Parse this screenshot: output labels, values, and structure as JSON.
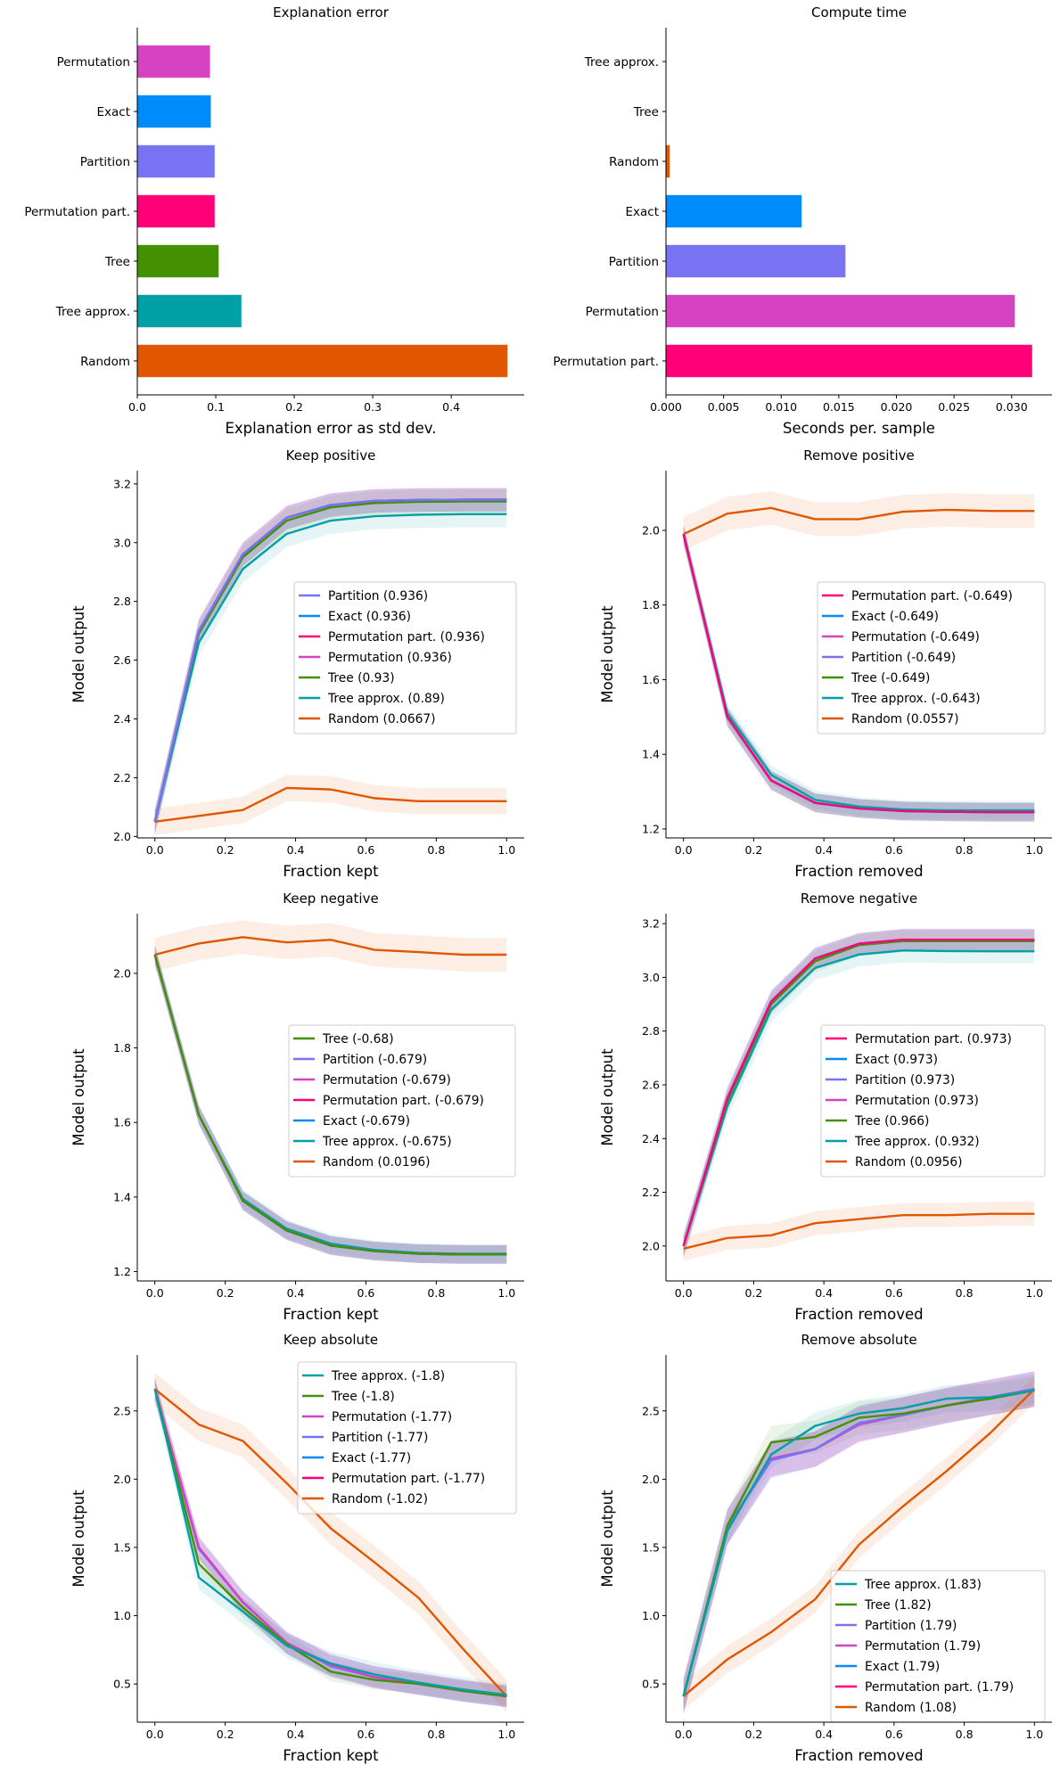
{
  "colors": {
    "Permutation": "#d543c3",
    "Exact": "#008bfb",
    "Partition": "#7873f3",
    "Permutation part.": "#ff0078",
    "Tree": "#449100",
    "Tree approx.": "#00a0a6",
    "Random": "#e05700"
  },
  "chart_data": [
    {
      "type": "bar",
      "orientation": "horizontal",
      "title": "Explanation error",
      "xlabel": "Explanation error as std dev.",
      "ylabel": "",
      "categories": [
        "Permutation",
        "Exact",
        "Partition",
        "Permutation part.",
        "Tree",
        "Tree approx.",
        "Random"
      ],
      "values": [
        0.093,
        0.094,
        0.099,
        0.099,
        0.104,
        0.133,
        0.472
      ],
      "xlim": [
        0,
        0.493
      ],
      "xticks": [
        0,
        0.1,
        0.2,
        0.3,
        0.4
      ],
      "xtick_labels": [
        "0.0",
        "0.1",
        "0.2",
        "0.3",
        "0.4"
      ]
    },
    {
      "type": "bar",
      "orientation": "horizontal",
      "title": "Compute time",
      "xlabel": "Seconds per. sample",
      "ylabel": "",
      "categories": [
        "Tree approx.",
        "Tree",
        "Random",
        "Exact",
        "Partition",
        "Permutation",
        "Permutation part."
      ],
      "values": [
        0,
        0,
        0.00035,
        0.0118,
        0.0156,
        0.0303,
        0.0318
      ],
      "xlim": [
        0,
        0.0335
      ],
      "xticks": [
        0,
        0.005,
        0.01,
        0.015,
        0.02,
        0.025,
        0.03
      ],
      "xtick_labels": [
        "0.000",
        "0.005",
        "0.010",
        "0.015",
        "0.020",
        "0.025",
        "0.030"
      ]
    },
    {
      "type": "line",
      "title": "Keep positive",
      "xlabel": "Fraction kept",
      "ylabel": "Model output",
      "x": [
        0,
        0.125,
        0.25,
        0.375,
        0.5,
        0.625,
        0.75,
        0.875,
        1
      ],
      "ylim": [
        1.995,
        3.245
      ],
      "yticks": [
        "2.0",
        "2.2",
        "2.4",
        "2.6",
        "2.8",
        "3.0",
        "3.2"
      ],
      "xticks": [
        "0.0",
        "0.2",
        "0.4",
        "0.6",
        "0.8",
        "1.0"
      ],
      "legend": "center-right",
      "series": [
        {
          "name": "Partition",
          "label": "Partition (0.936)",
          "values": [
            2.05,
            2.7,
            2.96,
            3.085,
            3.128,
            3.142,
            3.145,
            3.146,
            3.146
          ],
          "spread": 0.04
        },
        {
          "name": "Exact",
          "label": "Exact (0.936)",
          "values": [
            2.05,
            2.7,
            2.96,
            3.085,
            3.128,
            3.142,
            3.145,
            3.146,
            3.146
          ],
          "spread": 0.04
        },
        {
          "name": "Permutation part.",
          "label": "Permutation part. (0.936)",
          "values": [
            2.05,
            2.7,
            2.96,
            3.085,
            3.128,
            3.142,
            3.145,
            3.146,
            3.146
          ],
          "spread": 0.04
        },
        {
          "name": "Permutation",
          "label": "Permutation (0.936)",
          "values": [
            2.05,
            2.7,
            2.96,
            3.085,
            3.128,
            3.142,
            3.145,
            3.146,
            3.146
          ],
          "spread": 0.04
        },
        {
          "name": "Tree",
          "label": "Tree (0.93)",
          "values": [
            2.05,
            2.69,
            2.95,
            3.075,
            3.12,
            3.135,
            3.139,
            3.14,
            3.14
          ],
          "spread": 0.04
        },
        {
          "name": "Tree approx.",
          "label": "Tree approx. (0.89)",
          "values": [
            2.05,
            2.66,
            2.91,
            3.03,
            3.075,
            3.09,
            3.095,
            3.097,
            3.097
          ],
          "spread": 0.045
        },
        {
          "name": "Random",
          "label": "Random (0.0667)",
          "values": [
            2.05,
            2.07,
            2.09,
            2.165,
            2.16,
            2.13,
            2.12,
            2.12,
            2.12
          ],
          "spread": 0.045
        }
      ]
    },
    {
      "type": "line",
      "title": "Remove positive",
      "xlabel": "Fraction removed",
      "ylabel": "Model output",
      "x": [
        0,
        0.125,
        0.25,
        0.375,
        0.5,
        0.625,
        0.75,
        0.875,
        1
      ],
      "ylim": [
        1.176,
        2.16
      ],
      "yticks": [
        "1.2",
        "1.4",
        "1.6",
        "1.8",
        "2.0"
      ],
      "xticks": [
        "0.0",
        "0.2",
        "0.4",
        "0.6",
        "0.8",
        "1.0"
      ],
      "legend": "center-right",
      "series": [
        {
          "name": "Permutation part.",
          "label": "Permutation part. (-0.649)",
          "values": [
            1.99,
            1.5,
            1.33,
            1.27,
            1.255,
            1.248,
            1.246,
            1.245,
            1.245
          ],
          "spread": 0.025
        },
        {
          "name": "Exact",
          "label": "Exact (-0.649)",
          "values": [
            1.99,
            1.5,
            1.33,
            1.27,
            1.255,
            1.248,
            1.246,
            1.245,
            1.245
          ],
          "spread": 0.025
        },
        {
          "name": "Permutation",
          "label": "Permutation (-0.649)",
          "values": [
            1.99,
            1.5,
            1.33,
            1.27,
            1.255,
            1.248,
            1.246,
            1.245,
            1.245
          ],
          "spread": 0.025
        },
        {
          "name": "Partition",
          "label": "Partition (-0.649)",
          "values": [
            1.99,
            1.5,
            1.33,
            1.27,
            1.255,
            1.248,
            1.246,
            1.245,
            1.245
          ],
          "spread": 0.025
        },
        {
          "name": "Tree",
          "label": "Tree (-0.649)",
          "values": [
            1.99,
            1.5,
            1.33,
            1.27,
            1.255,
            1.248,
            1.246,
            1.245,
            1.245
          ],
          "spread": 0.025
        },
        {
          "name": "Tree approx.",
          "label": "Tree approx. (-0.643)",
          "values": [
            1.99,
            1.51,
            1.345,
            1.278,
            1.26,
            1.252,
            1.25,
            1.25,
            1.25
          ],
          "spread": 0.025
        },
        {
          "name": "Random",
          "label": "Random (0.0557)",
          "values": [
            1.99,
            2.045,
            2.06,
            2.03,
            2.03,
            2.05,
            2.055,
            2.052,
            2.052
          ],
          "spread": 0.045
        }
      ]
    },
    {
      "type": "line",
      "title": "Keep negative",
      "xlabel": "Fraction kept",
      "ylabel": "Model output",
      "x": [
        0,
        0.125,
        0.25,
        0.375,
        0.5,
        0.625,
        0.75,
        0.875,
        1
      ],
      "ylim": [
        1.175,
        2.16
      ],
      "yticks": [
        "1.2",
        "1.4",
        "1.6",
        "1.8",
        "2.0"
      ],
      "xticks": [
        "0.0",
        "0.2",
        "0.4",
        "0.6",
        "0.8",
        "1.0"
      ],
      "legend": "center-right",
      "series": [
        {
          "name": "Tree",
          "label": "Tree (-0.68)",
          "values": [
            2.05,
            1.62,
            1.39,
            1.31,
            1.27,
            1.255,
            1.248,
            1.246,
            1.246
          ],
          "spread": 0.025
        },
        {
          "name": "Partition",
          "label": "Partition (-0.679)",
          "values": [
            2.05,
            1.62,
            1.39,
            1.31,
            1.27,
            1.255,
            1.248,
            1.246,
            1.246
          ],
          "spread": 0.025
        },
        {
          "name": "Permutation",
          "label": "Permutation (-0.679)",
          "values": [
            2.05,
            1.62,
            1.39,
            1.31,
            1.27,
            1.255,
            1.248,
            1.246,
            1.246
          ],
          "spread": 0.025
        },
        {
          "name": "Permutation part.",
          "label": "Permutation part. (-0.679)",
          "values": [
            2.05,
            1.62,
            1.39,
            1.31,
            1.27,
            1.255,
            1.248,
            1.246,
            1.246
          ],
          "spread": 0.025
        },
        {
          "name": "Exact",
          "label": "Exact (-0.679)",
          "values": [
            2.05,
            1.62,
            1.39,
            1.31,
            1.27,
            1.255,
            1.248,
            1.246,
            1.246
          ],
          "spread": 0.025
        },
        {
          "name": "Tree approx.",
          "label": "Tree approx. (-0.675)",
          "values": [
            2.05,
            1.62,
            1.395,
            1.315,
            1.275,
            1.258,
            1.25,
            1.248,
            1.248
          ],
          "spread": 0.025
        },
        {
          "name": "Random",
          "label": "Random (0.0196)",
          "values": [
            2.05,
            2.08,
            2.097,
            2.083,
            2.09,
            2.063,
            2.057,
            2.05,
            2.05
          ],
          "spread": 0.045
        }
      ]
    },
    {
      "type": "line",
      "title": "Remove negative",
      "xlabel": "Fraction removed",
      "ylabel": "Model output",
      "x": [
        0,
        0.125,
        0.25,
        0.375,
        0.5,
        0.625,
        0.75,
        0.875,
        1
      ],
      "ylim": [
        1.87,
        3.237
      ],
      "yticks": [
        "2.0",
        "2.2",
        "2.4",
        "2.6",
        "2.8",
        "3.0",
        "3.2"
      ],
      "xticks": [
        "0.0",
        "0.2",
        "0.4",
        "0.6",
        "0.8",
        "1.0"
      ],
      "legend": "center-right",
      "series": [
        {
          "name": "Permutation part.",
          "label": "Permutation part. (0.973)",
          "values": [
            2.0,
            2.55,
            2.91,
            3.07,
            3.125,
            3.14,
            3.14,
            3.14,
            3.14
          ],
          "spread": 0.04
        },
        {
          "name": "Exact",
          "label": "Exact (0.973)",
          "values": [
            2.0,
            2.55,
            2.91,
            3.07,
            3.125,
            3.14,
            3.14,
            3.14,
            3.14
          ],
          "spread": 0.04
        },
        {
          "name": "Partition",
          "label": "Partition (0.973)",
          "values": [
            2.0,
            2.55,
            2.91,
            3.07,
            3.125,
            3.14,
            3.14,
            3.14,
            3.14
          ],
          "spread": 0.04
        },
        {
          "name": "Permutation",
          "label": "Permutation (0.973)",
          "values": [
            2.0,
            2.55,
            2.91,
            3.07,
            3.125,
            3.14,
            3.14,
            3.14,
            3.14
          ],
          "spread": 0.04
        },
        {
          "name": "Tree",
          "label": "Tree (0.966)",
          "values": [
            2.0,
            2.54,
            2.9,
            3.06,
            3.12,
            3.135,
            3.135,
            3.135,
            3.135
          ],
          "spread": 0.04
        },
        {
          "name": "Tree approx.",
          "label": "Tree approx. (0.932)",
          "values": [
            2.0,
            2.52,
            2.88,
            3.035,
            3.085,
            3.1,
            3.098,
            3.097,
            3.097
          ],
          "spread": 0.045
        },
        {
          "name": "Random",
          "label": "Random (0.0956)",
          "values": [
            1.99,
            2.03,
            2.04,
            2.085,
            2.1,
            2.115,
            2.115,
            2.12,
            2.12
          ],
          "spread": 0.045
        }
      ]
    },
    {
      "type": "line",
      "title": "Keep absolute",
      "xlabel": "Fraction kept",
      "ylabel": "Model output",
      "x": [
        0,
        0.125,
        0.25,
        0.375,
        0.5,
        0.625,
        0.75,
        0.875,
        1
      ],
      "ylim": [
        0.22,
        2.91
      ],
      "yticks": [
        "0.5",
        "1.0",
        "1.5",
        "2.0",
        "2.5"
      ],
      "xticks": [
        "0.0",
        "0.2",
        "0.4",
        "0.6",
        "0.8",
        "1.0"
      ],
      "legend": "upper-right",
      "series": [
        {
          "name": "Tree approx.",
          "label": "Tree approx. (-1.8)",
          "values": [
            2.66,
            1.28,
            1.03,
            0.78,
            0.65,
            0.57,
            0.51,
            0.46,
            0.42
          ],
          "spread": 0.09
        },
        {
          "name": "Tree",
          "label": "Tree (-1.8)",
          "values": [
            2.66,
            1.38,
            1.06,
            0.79,
            0.59,
            0.53,
            0.5,
            0.45,
            0.41
          ],
          "spread": 0.07
        },
        {
          "name": "Permutation",
          "label": "Permutation (-1.77)",
          "values": [
            2.66,
            1.5,
            1.1,
            0.8,
            0.64,
            0.55,
            0.5,
            0.45,
            0.41
          ],
          "spread": 0.08
        },
        {
          "name": "Partition",
          "label": "Partition (-1.77)",
          "values": [
            2.66,
            1.49,
            1.1,
            0.8,
            0.63,
            0.55,
            0.5,
            0.45,
            0.41
          ],
          "spread": 0.08
        },
        {
          "name": "Exact",
          "label": "Exact (-1.77)",
          "values": [
            2.66,
            1.49,
            1.1,
            0.8,
            0.63,
            0.55,
            0.5,
            0.45,
            0.41
          ],
          "spread": 0.08
        },
        {
          "name": "Permutation part.",
          "label": "Permutation part. (-1.77)",
          "values": [
            2.66,
            1.5,
            1.1,
            0.8,
            0.64,
            0.55,
            0.5,
            0.45,
            0.41
          ],
          "spread": 0.08
        },
        {
          "name": "Random",
          "label": "Random (-1.02)",
          "values": [
            2.66,
            2.4,
            2.28,
            1.97,
            1.64,
            1.39,
            1.13,
            0.76,
            0.41
          ],
          "spread": 0.12
        }
      ]
    },
    {
      "type": "line",
      "title": "Remove absolute",
      "xlabel": "Fraction removed",
      "ylabel": "Model output",
      "x": [
        0,
        0.125,
        0.25,
        0.375,
        0.5,
        0.625,
        0.75,
        0.875,
        1
      ],
      "ylim": [
        0.22,
        2.91
      ],
      "yticks": [
        "0.5",
        "1.0",
        "1.5",
        "2.0",
        "2.5"
      ],
      "xticks": [
        "0.0",
        "0.2",
        "0.4",
        "0.6",
        "0.8",
        "1.0"
      ],
      "legend": "lower-right",
      "series": [
        {
          "name": "Tree approx.",
          "label": "Tree approx. (1.83)",
          "values": [
            0.41,
            1.62,
            2.18,
            2.39,
            2.48,
            2.52,
            2.59,
            2.6,
            2.65
          ],
          "spread": 0.1
        },
        {
          "name": "Tree",
          "label": "Tree (1.82)",
          "values": [
            0.41,
            1.66,
            2.27,
            2.31,
            2.45,
            2.48,
            2.54,
            2.59,
            2.65
          ],
          "spread": 0.12
        },
        {
          "name": "Partition",
          "label": "Partition (1.79)",
          "values": [
            0.41,
            1.65,
            2.14,
            2.22,
            2.41,
            2.47,
            2.54,
            2.6,
            2.66
          ],
          "spread": 0.13
        },
        {
          "name": "Permutation",
          "label": "Permutation (1.79)",
          "values": [
            0.41,
            1.65,
            2.15,
            2.22,
            2.4,
            2.47,
            2.54,
            2.6,
            2.66
          ],
          "spread": 0.13
        },
        {
          "name": "Exact",
          "label": "Exact (1.79)",
          "values": [
            0.41,
            1.65,
            2.14,
            2.22,
            2.41,
            2.47,
            2.54,
            2.6,
            2.66
          ],
          "spread": 0.13
        },
        {
          "name": "Permutation part.",
          "label": "Permutation part. (1.79)",
          "values": [
            0.41,
            1.65,
            2.15,
            2.22,
            2.4,
            2.47,
            2.54,
            2.6,
            2.66
          ],
          "spread": 0.13
        },
        {
          "name": "Random",
          "label": "Random (1.08)",
          "values": [
            0.41,
            0.68,
            0.88,
            1.12,
            1.52,
            1.8,
            2.06,
            2.34,
            2.66
          ],
          "spread": 0.1
        }
      ]
    }
  ]
}
